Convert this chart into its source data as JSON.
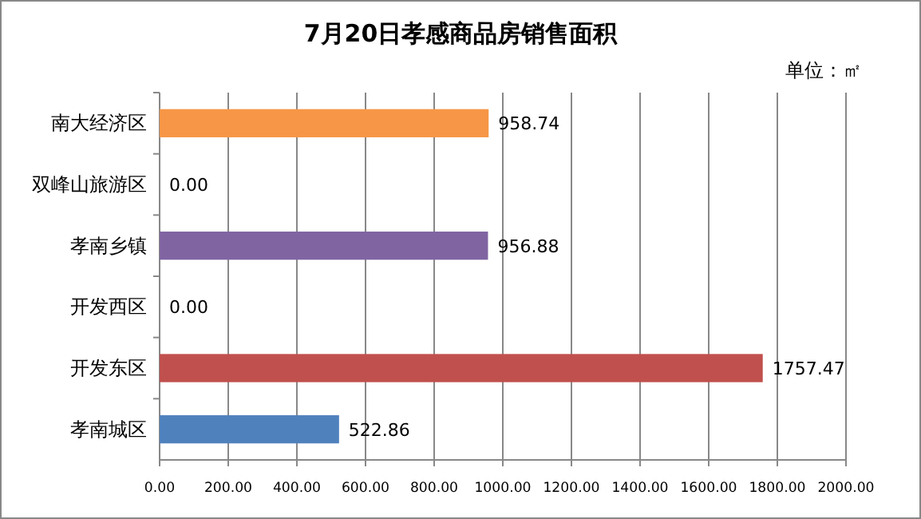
{
  "chart_data": {
    "type": "bar",
    "orientation": "horizontal",
    "title": "7月20日孝感商品房销售面积",
    "annotations": [
      "单位：㎡"
    ],
    "categories": [
      "南大经济区",
      "双峰山旅游区",
      "孝南乡镇",
      "开发西区",
      "开发东区",
      "孝南城区"
    ],
    "values": [
      958.74,
      0,
      956.88,
      0,
      1757.47,
      522.86
    ],
    "value_labels": [
      "958.74",
      "0.00",
      "956.88",
      "0.00",
      "1757.47",
      "522.86"
    ],
    "colors": [
      "#f79646",
      "#9bbb59",
      "#8064a2",
      "#4bacc6",
      "#c0504d",
      "#4f81bd"
    ],
    "xlim": [
      0,
      2000
    ],
    "xticks": [
      {
        "value": 0,
        "label": "0.00"
      },
      {
        "value": 200,
        "label": "200.00"
      },
      {
        "value": 400,
        "label": "400.00"
      },
      {
        "value": 600,
        "label": "600.00"
      },
      {
        "value": 800,
        "label": "800.00"
      },
      {
        "value": 1000,
        "label": "1000.00"
      },
      {
        "value": 1200,
        "label": "1200.00"
      },
      {
        "value": 1400,
        "label": "1400.00"
      },
      {
        "value": 1600,
        "label": "1600.00"
      },
      {
        "value": 1800,
        "label": "1800.00"
      },
      {
        "value": 2000,
        "label": "2000.00"
      }
    ],
    "grid": "x"
  }
}
